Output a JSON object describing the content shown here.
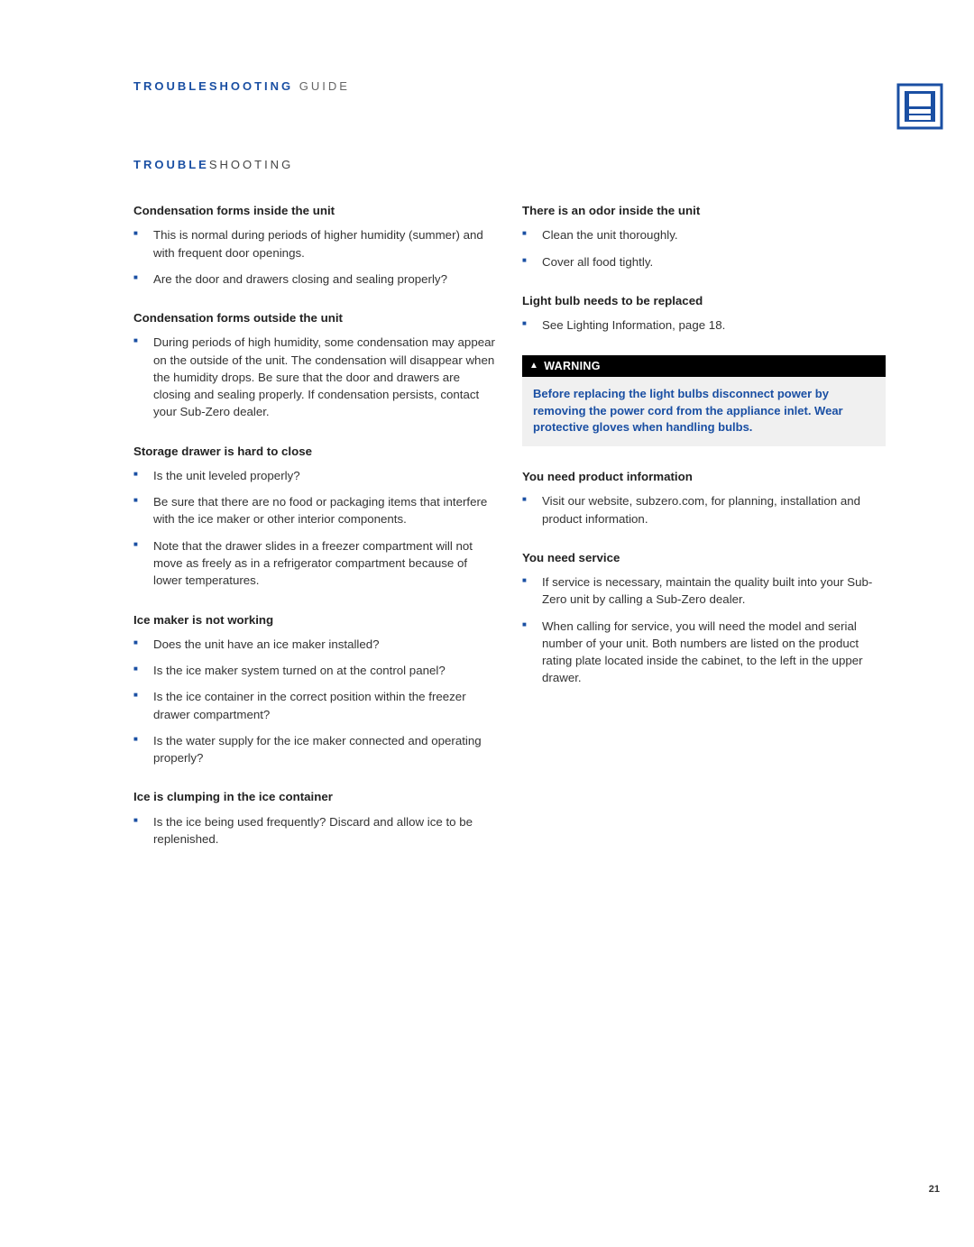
{
  "header": {
    "accent": "TROUBLESHOOTING",
    "rest": " GUIDE"
  },
  "section": {
    "accent": "TROUBLE",
    "rest": "SHOOTING"
  },
  "icon": {
    "outer_stroke": "#1a4fa3",
    "inner_fill": "#1a4fa3",
    "white": "#ffffff"
  },
  "left": [
    {
      "heading": "Condensation forms inside the unit",
      "items": [
        "This is normal during periods of higher humidity (summer) and with frequent door openings.",
        "Are the door and drawers closing and sealing properly?"
      ]
    },
    {
      "heading": "Condensation forms outside the unit",
      "items": [
        "During periods of high humidity, some condensation may appear on the outside of the unit. The condensation will disappear when the humidity drops. Be sure that the door and drawers are closing and sealing properly. If condensation persists, contact your Sub-Zero dealer."
      ]
    },
    {
      "heading": "Storage drawer is hard to close",
      "items": [
        "Is the unit leveled properly?",
        "Be sure that there are no food or packaging items that interfere with the ice maker or other interior components.",
        "Note that the drawer slides in a freezer compartment will not move as freely as in a refrigerator compartment because of lower temperatures."
      ]
    },
    {
      "heading": "Ice maker is not working",
      "items": [
        "Does the unit have an ice maker installed?",
        "Is the ice maker system turned on at the control panel?",
        "Is the ice container in the correct position within the freezer drawer compartment?",
        "Is the water supply for the ice maker connected and operating properly?"
      ]
    },
    {
      "heading": "Ice is clumping in the ice container",
      "items": [
        "Is the ice being used frequently? Discard and allow ice to be replenished."
      ]
    }
  ],
  "right_pre_warning": [
    {
      "heading": "There is an odor inside the unit",
      "items": [
        "Clean the unit thoroughly.",
        "Cover all food tightly."
      ]
    },
    {
      "heading": "Light bulb needs to be replaced",
      "items": [
        "See Lighting Information, page 18."
      ]
    }
  ],
  "warning": {
    "label": "WARNING",
    "text": "Before replacing the light bulbs disconnect power by removing the power cord from the appliance inlet. Wear protective gloves when handling bulbs."
  },
  "right_post_warning": [
    {
      "heading": "You need product information",
      "items": [
        "Visit our website, subzero.com, for planning, installation and product information."
      ]
    },
    {
      "heading": "You need service",
      "items": [
        "If service is necessary, maintain the quality built into your Sub-Zero unit by calling a Sub-Zero dealer.",
        "When calling for service, you will need the model and serial number of your unit. Both numbers are listed on the product rating plate located inside the cabinet, to the left in the upper drawer."
      ]
    }
  ],
  "page_number": "21",
  "colors": {
    "accent": "#1a4fa3",
    "text": "#333333",
    "heading": "#222222",
    "warning_bg": "#f0f0f0",
    "warning_bar_bg": "#000000",
    "warning_bar_fg": "#ffffff",
    "page_bg": "#ffffff"
  }
}
